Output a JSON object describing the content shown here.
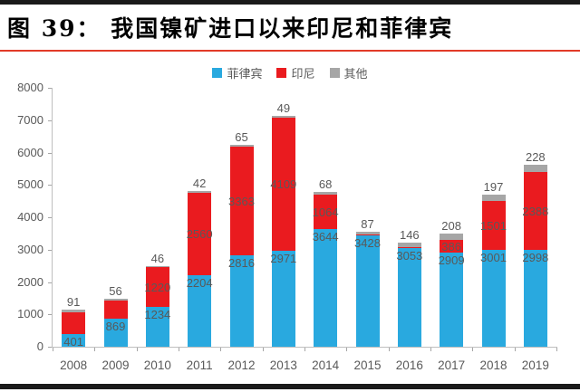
{
  "figure": {
    "title": "图 39：  我国镍矿进口以来印尼和菲律宾",
    "accent_rule_color": "#e23b28",
    "border_color": "#1a1a1a"
  },
  "chart_data": {
    "type": "bar",
    "stacked": true,
    "title": "图 39：  我国镍矿进口以来印尼和菲律宾",
    "legend_position": "top",
    "grid": false,
    "axis_color": "#bfbfbf",
    "label_color": "#595959",
    "ylim": [
      0,
      8000
    ],
    "ytick_step": 1000,
    "yticks": [
      "0",
      "1000",
      "2000",
      "3000",
      "4000",
      "5000",
      "6000",
      "7000",
      "8000"
    ],
    "categories": [
      "2008",
      "2009",
      "2010",
      "2011",
      "2012",
      "2013",
      "2014",
      "2015",
      "2016",
      "2017",
      "2018",
      "2019"
    ],
    "series": [
      {
        "name": "菲律宾",
        "key": "philippines",
        "color": "#29a9df",
        "values": [
          401,
          869,
          1234,
          2204,
          2816,
          2971,
          3644,
          3428,
          3053,
          2909,
          3001,
          2998
        ],
        "labels": [
          "401",
          "869",
          "1234",
          "2204",
          "2816",
          "2971",
          "3644",
          "3428",
          "3053",
          "2909",
          "3001",
          "2998"
        ]
      },
      {
        "name": "印尼",
        "key": "indonesia",
        "color": "#ea1b1f",
        "values": [
          650,
          570,
          1220,
          2560,
          3363,
          4109,
          1064,
          30,
          20,
          386,
          1501,
          2388
        ],
        "labels": [
          null,
          null,
          "1220",
          "2560",
          "3363",
          "4109",
          "1064",
          null,
          null,
          "386",
          "1501",
          "2388"
        ]
      },
      {
        "name": "其他",
        "key": "other",
        "color": "#a6a6a6",
        "values": [
          91,
          56,
          46,
          42,
          65,
          49,
          68,
          87,
          146,
          208,
          197,
          228
        ],
        "labels": [
          "91",
          "56",
          "46",
          "42",
          "65",
          "49",
          "68",
          "87",
          "146",
          "208",
          "197",
          "228"
        ]
      }
    ]
  }
}
